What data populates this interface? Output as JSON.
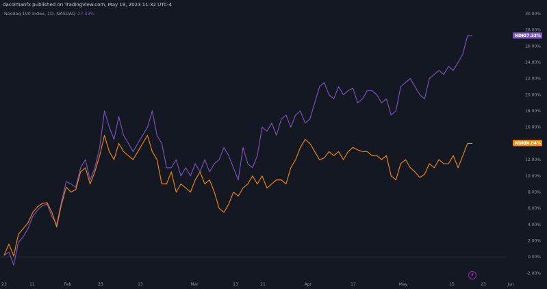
{
  "header": {
    "publisher_text": "dacolmanfx published on TradingView.com, May 19, 2023 11:32 UTC-4"
  },
  "legend": {
    "instrument": "Nasdaq 100 Index, 1D, NASDAQ",
    "change": "27.33%"
  },
  "badges": {
    "ndx": {
      "symbol": "NDX",
      "value": "+27.33%",
      "color": "#7e57c2"
    },
    "ndxe": {
      "symbol": "NDXE",
      "value": "+14.04%",
      "color": "#ff8c00"
    }
  },
  "replay_icon": "lightning-icon",
  "chart_data": {
    "type": "line",
    "y_unit": "%",
    "y_ticks": [
      "30.00%",
      "28.00%",
      "26.00%",
      "24.00%",
      "22.00%",
      "20.00%",
      "18.00%",
      "16.00%",
      "14.00%",
      "12.00%",
      "10.00%",
      "8.00%",
      "6.00%",
      "4.00%",
      "2.00%",
      "0.00%",
      "-2.00%"
    ],
    "x_ticks": [
      "23",
      "11",
      "Feb",
      "23",
      "13",
      "Mar",
      "13",
      "21",
      "Apr",
      "17",
      "May",
      "15",
      "23",
      "Jun"
    ],
    "ylim": [
      -2.6,
      30.5
    ],
    "grid": false,
    "series": [
      {
        "name": "NDX",
        "color": "#7e57c2",
        "values": [
          0.2,
          0.6,
          -1.0,
          1.8,
          2.5,
          3.5,
          5.0,
          5.8,
          6.3,
          6.5,
          5.0,
          4.0,
          6.8,
          9.3,
          9.0,
          8.6,
          11.0,
          12.0,
          9.5,
          11.0,
          13.5,
          18.0,
          16.0,
          14.5,
          17.3,
          15.0,
          14.0,
          13.0,
          14.0,
          15.0,
          16.0,
          18.0,
          15.0,
          14.0,
          11.0,
          11.0,
          12.0,
          10.0,
          11.0,
          10.0,
          11.5,
          10.5,
          12.0,
          10.5,
          11.5,
          12.0,
          13.5,
          12.5,
          11.0,
          9.5,
          13.5,
          11.5,
          11.0,
          12.5,
          16.0,
          15.5,
          16.5,
          15.0,
          17.0,
          17.5,
          16.0,
          17.5,
          18.0,
          16.5,
          17.0,
          19.0,
          21.0,
          21.5,
          20.0,
          19.5,
          21.0,
          20.0,
          20.5,
          20.8,
          19.0,
          19.5,
          20.5,
          20.5,
          20.0,
          19.0,
          19.5,
          17.5,
          18.0,
          21.0,
          21.5,
          22.0,
          21.0,
          20.0,
          19.5,
          22.0,
          22.5,
          23.0,
          22.5,
          23.5,
          23.0,
          24.0,
          25.0,
          27.3,
          27.3
        ]
      },
      {
        "name": "NDXE",
        "color": "#ff8c00",
        "values": [
          0.2,
          1.6,
          0.1,
          2.8,
          3.5,
          4.2,
          5.5,
          6.2,
          6.6,
          6.7,
          5.5,
          3.7,
          6.5,
          8.6,
          8.0,
          8.3,
          10.5,
          11.0,
          9.0,
          10.5,
          12.5,
          15.0,
          13.0,
          12.0,
          14.0,
          13.0,
          12.5,
          12.0,
          13.0,
          14.0,
          15.0,
          13.0,
          12.0,
          9.0,
          9.0,
          10.5,
          8.0,
          9.0,
          8.5,
          8.0,
          9.5,
          10.5,
          9.0,
          9.5,
          8.0,
          6.0,
          5.5,
          6.5,
          8.0,
          7.5,
          8.5,
          9.0,
          10.0,
          9.0,
          10.0,
          8.5,
          9.0,
          9.5,
          9.5,
          9.0,
          11.0,
          12.0,
          13.5,
          14.5,
          14.0,
          13.0,
          12.0,
          12.2,
          13.0,
          12.5,
          13.0,
          12.0,
          13.0,
          13.5,
          13.2,
          13.0,
          13.0,
          12.5,
          12.5,
          12.0,
          12.5,
          10.0,
          9.5,
          11.5,
          12.0,
          11.0,
          10.5,
          9.8,
          10.2,
          11.5,
          11.0,
          12.0,
          11.5,
          11.5,
          12.5,
          11.0,
          12.5,
          14.0,
          14.0
        ]
      }
    ]
  }
}
